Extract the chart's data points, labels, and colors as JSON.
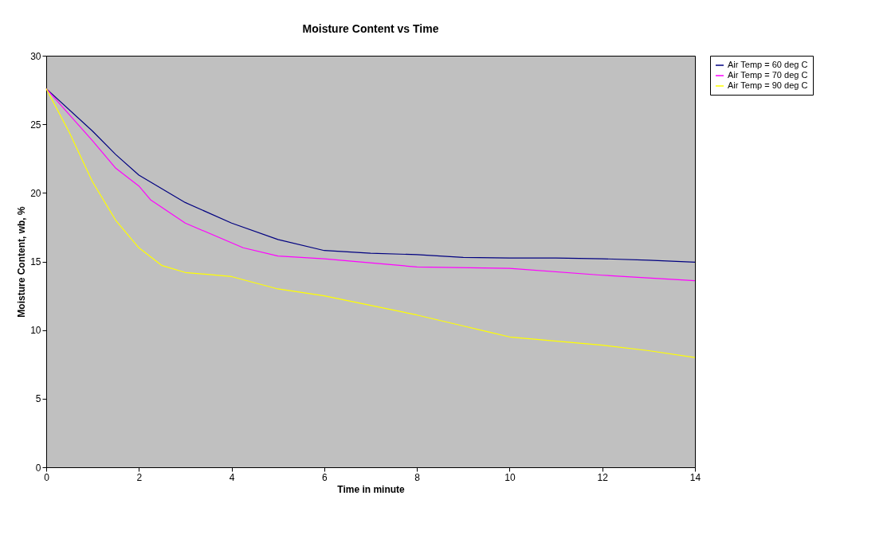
{
  "chart_data": {
    "type": "line",
    "title": "Moisture Content vs Time",
    "xlabel": "Time in minute",
    "ylabel": "Moisture Content, wb, %",
    "xlim": [
      0,
      14
    ],
    "xticks": [
      0,
      2,
      4,
      6,
      8,
      10,
      12,
      14
    ],
    "ylim": [
      0,
      30
    ],
    "yticks": [
      0,
      5,
      10,
      15,
      20,
      25,
      30
    ],
    "grid": false,
    "legend": "right",
    "marker": "none",
    "line_style": "solid",
    "series": [
      {
        "name": "Air Temp = 60 deg C",
        "color": "#000080",
        "x": [
          0,
          1,
          1.5,
          2,
          3,
          4,
          5,
          6,
          7,
          8,
          9,
          10,
          11,
          12,
          13,
          14
        ],
        "values": [
          27.6,
          24.5,
          22.8,
          21.3,
          19.3,
          17.8,
          16.6,
          15.8,
          15.6,
          15.5,
          15.3,
          15.25,
          15.25,
          15.2,
          15.1,
          14.95
        ]
      },
      {
        "name": "Air Temp = 70 deg C",
        "color": "#ff00ff",
        "x": [
          0,
          1,
          1.5,
          2,
          2.25,
          3,
          4.25,
          5,
          6,
          8,
          10,
          12,
          14
        ],
        "values": [
          27.6,
          23.8,
          21.8,
          20.5,
          19.5,
          17.8,
          16.0,
          15.4,
          15.2,
          14.6,
          14.5,
          14.0,
          13.6
        ]
      },
      {
        "name": "Air Temp = 90 deg C",
        "color": "#ffff00",
        "x": [
          0,
          0.5,
          1,
          1.5,
          2,
          2.5,
          3,
          4,
          5,
          6,
          7,
          8,
          9,
          9.5,
          10,
          12,
          13,
          14
        ],
        "values": [
          27.6,
          24.4,
          20.8,
          18.0,
          16.0,
          14.7,
          14.2,
          13.9,
          13.0,
          12.5,
          11.8,
          11.1,
          10.3,
          9.9,
          9.5,
          8.9,
          8.5,
          8.0
        ]
      }
    ]
  }
}
